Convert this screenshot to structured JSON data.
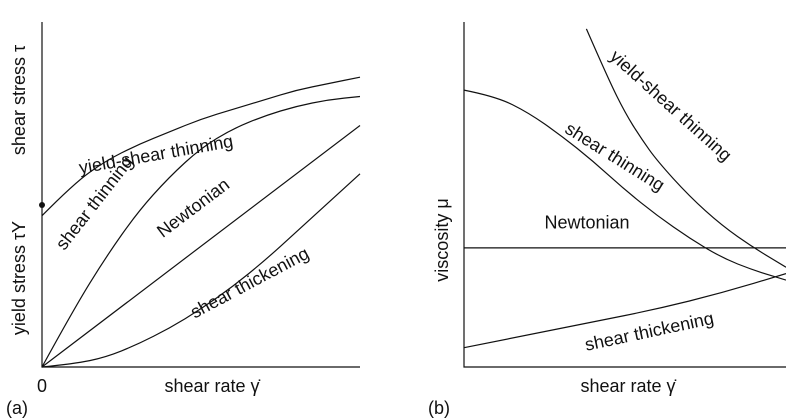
{
  "chart_data": [
    {
      "panel": "(a)",
      "type": "line",
      "xlabel": "shear rate γ̇",
      "ylabel": "shear stress τ",
      "yield_label": "yield stress τY",
      "origin_label": "0",
      "xlim": [
        0,
        1
      ],
      "ylim": [
        0,
        1
      ],
      "series": [
        {
          "name": "yield-shear thinning",
          "x": [
            0,
            0.1,
            0.2,
            0.3,
            0.4,
            0.5,
            0.6,
            0.7,
            0.8,
            0.9,
            1.0
          ],
          "y": [
            0.47,
            0.57,
            0.64,
            0.69,
            0.73,
            0.77,
            0.8,
            0.83,
            0.86,
            0.88,
            0.9
          ]
        },
        {
          "name": "shear thinning",
          "x": [
            0,
            0.1,
            0.2,
            0.3,
            0.4,
            0.5,
            0.6,
            0.7,
            0.8,
            0.9,
            1.0
          ],
          "y": [
            0,
            0.18,
            0.34,
            0.48,
            0.59,
            0.68,
            0.74,
            0.78,
            0.81,
            0.83,
            0.84
          ]
        },
        {
          "name": "Newtonian",
          "x": [
            0,
            1.0
          ],
          "y": [
            0,
            0.75
          ]
        },
        {
          "name": "shear thickening",
          "x": [
            0,
            0.1,
            0.2,
            0.3,
            0.4,
            0.5,
            0.6,
            0.7,
            0.8,
            0.9,
            1.0
          ],
          "y": [
            0,
            0.01,
            0.03,
            0.07,
            0.12,
            0.18,
            0.25,
            0.33,
            0.42,
            0.51,
            0.6
          ]
        }
      ],
      "curve_labels": [
        {
          "text": "yield-shear thinning",
          "x": 0.12,
          "y": 0.6,
          "angle": -10
        },
        {
          "text": "shear thinning",
          "x": 0.07,
          "y": 0.36,
          "angle": -52
        },
        {
          "text": "Newtonian",
          "x": 0.38,
          "y": 0.4,
          "angle": -37
        },
        {
          "text": "shear thickening",
          "x": 0.48,
          "y": 0.15,
          "angle": -28
        }
      ]
    },
    {
      "panel": "(b)",
      "type": "line",
      "xlabel": "shear rate γ̇",
      "ylabel": "viscosity μ",
      "xlim": [
        0,
        1
      ],
      "ylim": [
        0,
        1
      ],
      "series": [
        {
          "name": "yield-shear thinning",
          "x": [
            0.38,
            0.45,
            0.5,
            0.55,
            0.6,
            0.7,
            0.8,
            0.9,
            1.0
          ],
          "y": [
            1.05,
            0.89,
            0.79,
            0.71,
            0.64,
            0.53,
            0.44,
            0.37,
            0.31
          ]
        },
        {
          "name": "shear thinning",
          "x": [
            0,
            0.1,
            0.2,
            0.3,
            0.4,
            0.5,
            0.6,
            0.7,
            0.8,
            0.9,
            1.0
          ],
          "y": [
            0.86,
            0.84,
            0.79,
            0.72,
            0.64,
            0.55,
            0.47,
            0.4,
            0.34,
            0.3,
            0.27
          ]
        },
        {
          "name": "Newtonian",
          "x": [
            0,
            1.0
          ],
          "y": [
            0.37,
            0.37
          ]
        },
        {
          "name": "shear thickening",
          "x": [
            0,
            0.2,
            0.4,
            0.6,
            0.8,
            1.0
          ],
          "y": [
            0.06,
            0.1,
            0.14,
            0.18,
            0.23,
            0.29
          ]
        }
      ],
      "curve_labels": [
        {
          "text": "yield-shear thinning",
          "x": 0.45,
          "y": 0.96,
          "angle": 42
        },
        {
          "text": "shear thinning",
          "x": 0.31,
          "y": 0.73,
          "angle": 32
        },
        {
          "text": "Newtonian",
          "x": 0.25,
          "y": 0.43,
          "angle": 0
        },
        {
          "text": "shear thickening",
          "x": 0.38,
          "y": 0.05,
          "angle": -12
        }
      ]
    }
  ]
}
